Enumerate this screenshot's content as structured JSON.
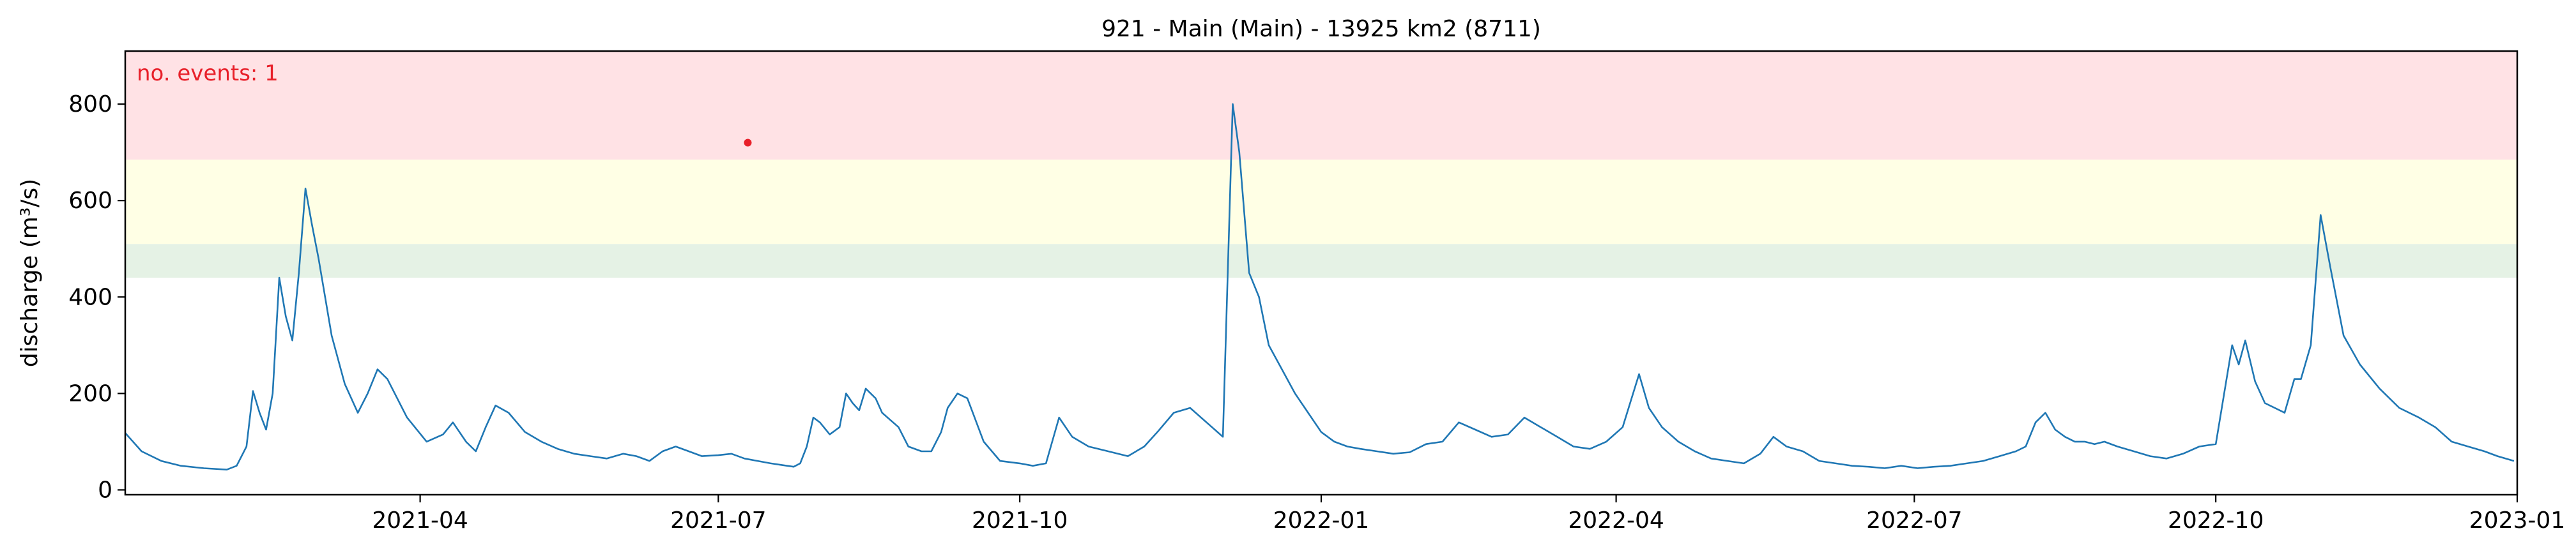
{
  "chart_data": {
    "type": "line",
    "title": "921 - Main (Main) - 13925 km2 (8711)",
    "xlabel": "",
    "ylabel": "discharge (m³/s)",
    "xlim": [
      "2021-01-01",
      "2023-01-01"
    ],
    "ylim": [
      -10,
      910
    ],
    "yticks": [
      0,
      200,
      400,
      600,
      800
    ],
    "xticks": [
      {
        "date": "2021-04-01",
        "label": "2021-04"
      },
      {
        "date": "2021-07-01",
        "label": "2021-07"
      },
      {
        "date": "2021-10-01",
        "label": "2021-10"
      },
      {
        "date": "2022-01-01",
        "label": "2022-01"
      },
      {
        "date": "2022-04-01",
        "label": "2022-04"
      },
      {
        "date": "2022-07-01",
        "label": "2022-07"
      },
      {
        "date": "2022-10-01",
        "label": "2022-10"
      },
      {
        "date": "2023-01-01",
        "label": "2023-01"
      }
    ],
    "grid": false,
    "threshold_bands": [
      {
        "from": 440,
        "to": 510,
        "color": "#e5f2e5"
      },
      {
        "from": 510,
        "to": 685,
        "color": "#ffffe5"
      },
      {
        "from": 685,
        "to": 910,
        "color": "#ffe2e5"
      }
    ],
    "annotation": {
      "text": "no. events: 1",
      "color": "#e8202a"
    },
    "events": [
      {
        "x": "2021-07-10",
        "y": 720
      }
    ],
    "series": [
      {
        "color": "#1f77b4",
        "points": [
          [
            "2021-01-01",
            118
          ],
          [
            "2021-01-06",
            80
          ],
          [
            "2021-01-12",
            60
          ],
          [
            "2021-01-18",
            50
          ],
          [
            "2021-01-25",
            45
          ],
          [
            "2021-02-01",
            42
          ],
          [
            "2021-02-04",
            50
          ],
          [
            "2021-02-07",
            90
          ],
          [
            "2021-02-09",
            205
          ],
          [
            "2021-02-11",
            160
          ],
          [
            "2021-02-13",
            125
          ],
          [
            "2021-02-15",
            200
          ],
          [
            "2021-02-17",
            440
          ],
          [
            "2021-02-19",
            360
          ],
          [
            "2021-02-21",
            310
          ],
          [
            "2021-02-23",
            450
          ],
          [
            "2021-02-25",
            625
          ],
          [
            "2021-02-27",
            550
          ],
          [
            "2021-03-01",
            480
          ],
          [
            "2021-03-05",
            320
          ],
          [
            "2021-03-09",
            220
          ],
          [
            "2021-03-13",
            160
          ],
          [
            "2021-03-16",
            200
          ],
          [
            "2021-03-19",
            250
          ],
          [
            "2021-03-22",
            230
          ],
          [
            "2021-03-28",
            150
          ],
          [
            "2021-04-03",
            100
          ],
          [
            "2021-04-08",
            115
          ],
          [
            "2021-04-11",
            140
          ],
          [
            "2021-04-15",
            100
          ],
          [
            "2021-04-18",
            80
          ],
          [
            "2021-04-21",
            130
          ],
          [
            "2021-04-24",
            175
          ],
          [
            "2021-04-28",
            160
          ],
          [
            "2021-05-03",
            120
          ],
          [
            "2021-05-08",
            100
          ],
          [
            "2021-05-13",
            85
          ],
          [
            "2021-05-18",
            75
          ],
          [
            "2021-05-23",
            70
          ],
          [
            "2021-05-28",
            65
          ],
          [
            "2021-06-02",
            75
          ],
          [
            "2021-06-06",
            70
          ],
          [
            "2021-06-10",
            60
          ],
          [
            "2021-06-14",
            80
          ],
          [
            "2021-06-18",
            90
          ],
          [
            "2021-06-22",
            80
          ],
          [
            "2021-06-26",
            70
          ],
          [
            "2021-07-01",
            72
          ],
          [
            "2021-07-05",
            75
          ],
          [
            "2021-07-09",
            65
          ],
          [
            "2021-07-13",
            60
          ],
          [
            "2021-07-17",
            55
          ],
          [
            "2021-07-20",
            52
          ],
          [
            "2021-07-24",
            48
          ],
          [
            "2021-07-26",
            55
          ],
          [
            "2021-07-28",
            90
          ],
          [
            "2021-07-30",
            150
          ],
          [
            "2021-08-01",
            140
          ],
          [
            "2021-08-04",
            115
          ],
          [
            "2021-08-07",
            130
          ],
          [
            "2021-08-09",
            200
          ],
          [
            "2021-08-11",
            180
          ],
          [
            "2021-08-13",
            165
          ],
          [
            "2021-08-15",
            210
          ],
          [
            "2021-08-18",
            190
          ],
          [
            "2021-08-20",
            160
          ],
          [
            "2021-08-25",
            130
          ],
          [
            "2021-08-28",
            90
          ],
          [
            "2021-09-01",
            80
          ],
          [
            "2021-09-04",
            80
          ],
          [
            "2021-09-07",
            120
          ],
          [
            "2021-09-09",
            170
          ],
          [
            "2021-09-12",
            200
          ],
          [
            "2021-09-15",
            190
          ],
          [
            "2021-09-20",
            100
          ],
          [
            "2021-09-25",
            60
          ],
          [
            "2021-10-01",
            55
          ],
          [
            "2021-10-05",
            50
          ],
          [
            "2021-10-09",
            55
          ],
          [
            "2021-10-13",
            150
          ],
          [
            "2021-10-17",
            110
          ],
          [
            "2021-10-22",
            90
          ],
          [
            "2021-10-28",
            80
          ],
          [
            "2021-11-03",
            70
          ],
          [
            "2021-11-08",
            90
          ],
          [
            "2021-11-12",
            120
          ],
          [
            "2021-11-17",
            160
          ],
          [
            "2021-11-22",
            170
          ],
          [
            "2021-11-27",
            140
          ],
          [
            "2021-12-02",
            110
          ],
          [
            "2021-12-05",
            800
          ],
          [
            "2021-12-07",
            700
          ],
          [
            "2021-12-10",
            450
          ],
          [
            "2021-12-13",
            400
          ],
          [
            "2021-12-16",
            300
          ],
          [
            "2021-12-20",
            250
          ],
          [
            "2021-12-24",
            200
          ],
          [
            "2021-12-28",
            160
          ],
          [
            "2022-01-01",
            120
          ],
          [
            "2022-01-05",
            100
          ],
          [
            "2022-01-09",
            90
          ],
          [
            "2022-01-13",
            85
          ],
          [
            "2022-01-18",
            80
          ],
          [
            "2022-01-23",
            75
          ],
          [
            "2022-01-28",
            78
          ],
          [
            "2022-02-02",
            95
          ],
          [
            "2022-02-07",
            100
          ],
          [
            "2022-02-12",
            140
          ],
          [
            "2022-02-17",
            125
          ],
          [
            "2022-02-22",
            110
          ],
          [
            "2022-02-27",
            115
          ],
          [
            "2022-03-04",
            150
          ],
          [
            "2022-03-09",
            130
          ],
          [
            "2022-03-14",
            110
          ],
          [
            "2022-03-19",
            90
          ],
          [
            "2022-03-24",
            85
          ],
          [
            "2022-03-29",
            100
          ],
          [
            "2022-04-03",
            130
          ],
          [
            "2022-04-08",
            240
          ],
          [
            "2022-04-11",
            170
          ],
          [
            "2022-04-15",
            130
          ],
          [
            "2022-04-20",
            100
          ],
          [
            "2022-04-25",
            80
          ],
          [
            "2022-04-30",
            65
          ],
          [
            "2022-05-05",
            60
          ],
          [
            "2022-05-10",
            55
          ],
          [
            "2022-05-15",
            75
          ],
          [
            "2022-05-19",
            110
          ],
          [
            "2022-05-23",
            90
          ],
          [
            "2022-05-28",
            80
          ],
          [
            "2022-06-02",
            60
          ],
          [
            "2022-06-07",
            55
          ],
          [
            "2022-06-12",
            50
          ],
          [
            "2022-06-17",
            48
          ],
          [
            "2022-06-22",
            45
          ],
          [
            "2022-06-27",
            50
          ],
          [
            "2022-07-02",
            45
          ],
          [
            "2022-07-07",
            48
          ],
          [
            "2022-07-12",
            50
          ],
          [
            "2022-07-17",
            55
          ],
          [
            "2022-07-22",
            60
          ],
          [
            "2022-07-27",
            70
          ],
          [
            "2022-08-01",
            80
          ],
          [
            "2022-08-04",
            90
          ],
          [
            "2022-08-07",
            140
          ],
          [
            "2022-08-10",
            160
          ],
          [
            "2022-08-13",
            125
          ],
          [
            "2022-08-16",
            110
          ],
          [
            "2022-08-19",
            100
          ],
          [
            "2022-08-22",
            100
          ],
          [
            "2022-08-25",
            95
          ],
          [
            "2022-08-28",
            100
          ],
          [
            "2022-09-01",
            90
          ],
          [
            "2022-09-06",
            80
          ],
          [
            "2022-09-11",
            70
          ],
          [
            "2022-09-16",
            65
          ],
          [
            "2022-09-21",
            75
          ],
          [
            "2022-09-26",
            90
          ],
          [
            "2022-10-01",
            95
          ],
          [
            "2022-10-06",
            300
          ],
          [
            "2022-10-08",
            260
          ],
          [
            "2022-10-10",
            310
          ],
          [
            "2022-10-13",
            225
          ],
          [
            "2022-10-16",
            180
          ],
          [
            "2022-10-19",
            170
          ],
          [
            "2022-10-22",
            160
          ],
          [
            "2022-10-25",
            230
          ],
          [
            "2022-10-27",
            230
          ],
          [
            "2022-10-30",
            300
          ],
          [
            "2022-11-02",
            570
          ],
          [
            "2022-11-05",
            460
          ],
          [
            "2022-11-09",
            320
          ],
          [
            "2022-11-14",
            260
          ],
          [
            "2022-11-20",
            210
          ],
          [
            "2022-11-26",
            170
          ],
          [
            "2022-12-02",
            150
          ],
          [
            "2022-12-07",
            130
          ],
          [
            "2022-12-12",
            100
          ],
          [
            "2022-12-17",
            90
          ],
          [
            "2022-12-22",
            80
          ],
          [
            "2022-12-26",
            70
          ],
          [
            "2022-12-31",
            60
          ]
        ]
      }
    ]
  }
}
